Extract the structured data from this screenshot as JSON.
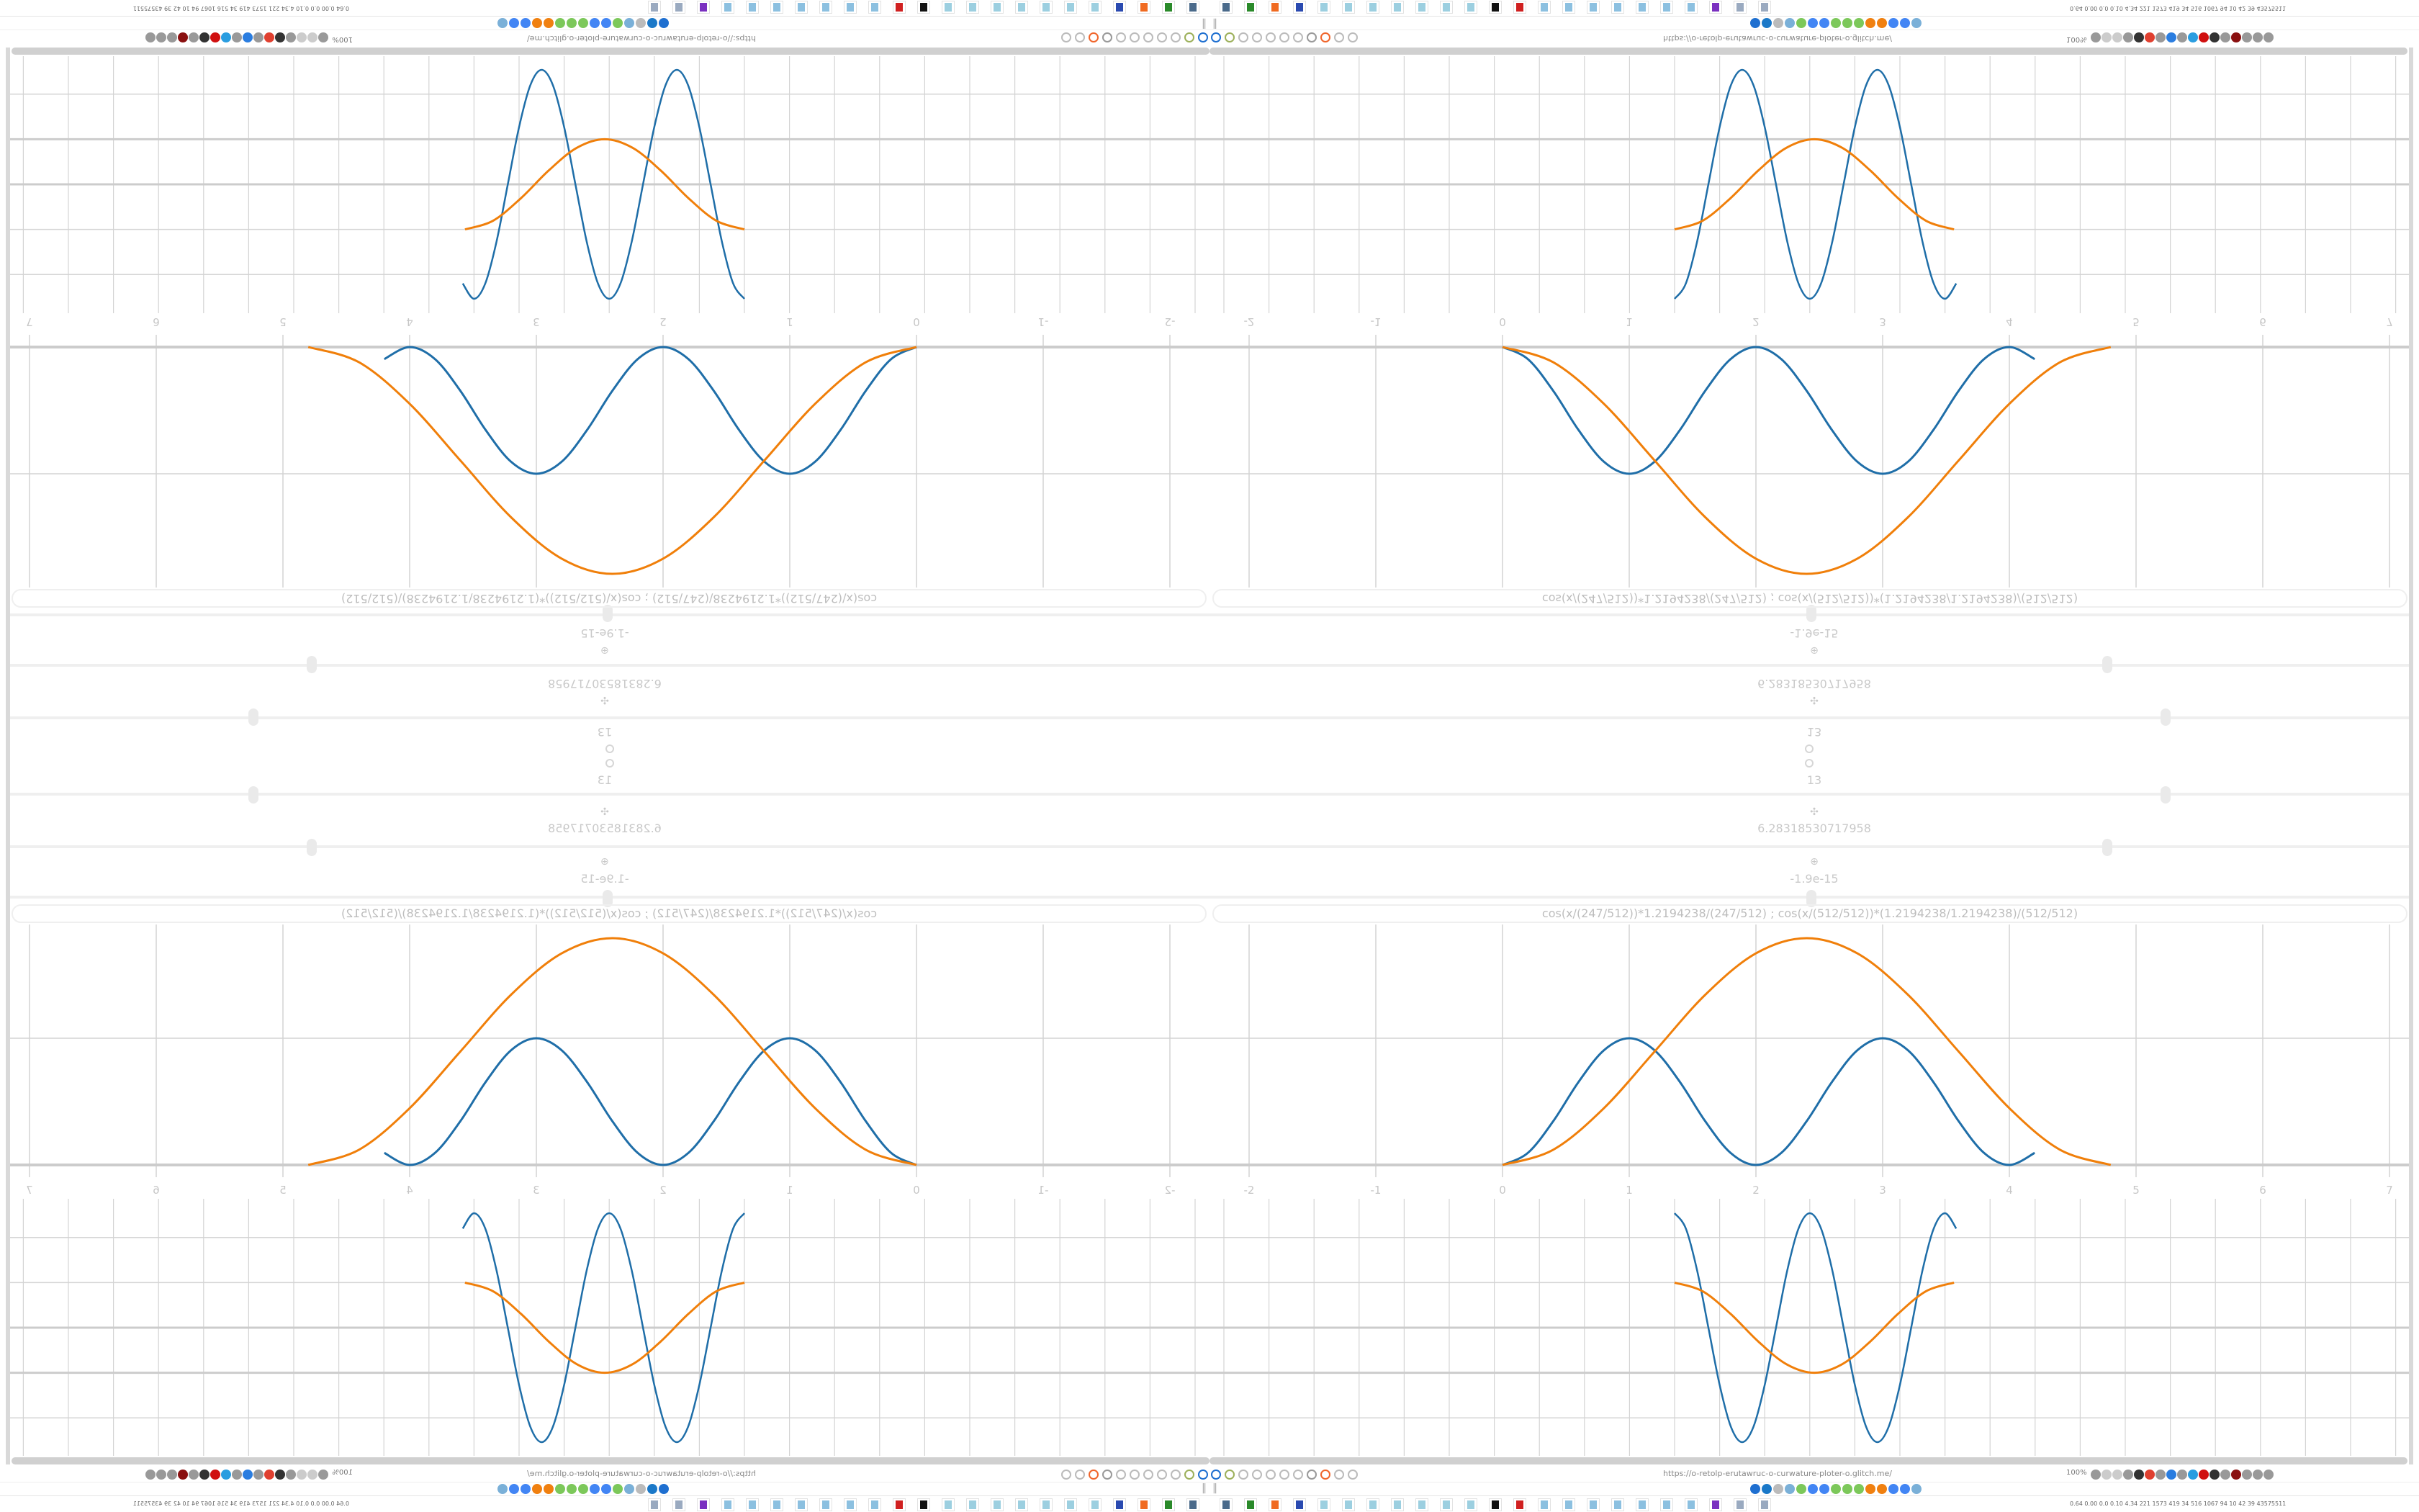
{
  "controls": {
    "segments_top": "13",
    "segments_bottom": "13",
    "range_end": "6.28318530717958",
    "range_start": "-1.9e-15",
    "formula": "cos(x/(247/512))*1.2194238/(247/512)   ;   cos(x/(512/512))*(1.2194238/1.2194238)/(512/512)"
  },
  "colors": {
    "series_blue": "#1f6ea8",
    "series_orange": "#f07f0a",
    "grid": "#d4d4d4",
    "axis": "#cccccc"
  },
  "chart_data": [
    {
      "type": "line",
      "x_ticks": [
        "-2",
        "-1",
        "0",
        "1",
        "2",
        "3",
        "4",
        "5",
        "6",
        "7"
      ],
      "xlim": [
        -2.3,
        7.1
      ],
      "ylim": [
        0,
        1.9
      ],
      "grid": true,
      "series": [
        {
          "color": "#1f6ea8",
          "x": [
            0,
            0.2,
            0.4,
            0.6,
            0.8,
            1,
            1.2,
            1.4,
            1.6,
            1.8,
            2,
            2.2,
            2.4,
            2.6,
            2.8,
            3,
            3.2,
            3.4,
            3.6,
            3.8,
            4,
            4.2
          ],
          "y": [
            0,
            0.095,
            0.345,
            0.655,
            0.905,
            1,
            0.905,
            0.655,
            0.345,
            0.095,
            0,
            0.095,
            0.345,
            0.655,
            0.905,
            1,
            0.905,
            0.655,
            0.345,
            0.095,
            0,
            0.095
          ]
        },
        {
          "color": "#f07f0a",
          "x": [
            0,
            0.4,
            0.8,
            1.2,
            1.6,
            2.0,
            2.4,
            2.8,
            3.2,
            3.6,
            4.0,
            4.4,
            4.8
          ],
          "y": [
            0,
            0.12,
            0.448,
            0.895,
            1.343,
            1.67,
            1.79,
            1.67,
            1.343,
            0.895,
            0.448,
            0.12,
            0
          ]
        }
      ]
    },
    {
      "type": "line",
      "grid": true,
      "series": [
        {
          "color": "#1f6ea8",
          "x": [
            0,
            0.25,
            0.5,
            0.75,
            1,
            1.25,
            1.5,
            1.75,
            2,
            2.25,
            2.5,
            2.75,
            3,
            3.25,
            3.5,
            3.75,
            4,
            4.25,
            4.5,
            4.75,
            5,
            5.25,
            5.5,
            5.75,
            6,
            6.25
          ],
          "y": [
            2.54,
            2.2,
            1.27,
            0,
            -1.27,
            -2.2,
            -2.54,
            -2.2,
            -1.27,
            0,
            1.27,
            2.2,
            2.54,
            2.2,
            1.27,
            0,
            -1.27,
            -2.2,
            -2.54,
            -2.2,
            -1.27,
            0,
            1.27,
            2.2,
            2.54,
            2.2
          ]
        },
        {
          "color": "#f07f0a",
          "x": [
            0,
            0.62,
            1.24,
            1.86,
            2.48,
            3.1,
            3.72,
            4.34,
            4.96,
            5.58,
            6.2
          ],
          "y": [
            1,
            0.809,
            0.309,
            -0.309,
            -0.809,
            -1,
            -0.809,
            -0.309,
            0.309,
            0.809,
            1
          ]
        }
      ]
    }
  ],
  "browser": {
    "url": "https://o-retolp-erutawruc-o-curwature-ploter-o.glitch.me/",
    "zoom": "100%",
    "toolbar_left_icons": [
      "#1e6fd0",
      "#9cb05a",
      "#bbb",
      "#bbb",
      "#bbb",
      "#bbb",
      "#bbb",
      "#999",
      "#f0642a",
      "#bbb",
      "#bbb"
    ],
    "toolbar_right_icons": [
      "#999",
      "#ccc",
      "#ccc",
      "#999",
      "#333",
      "#e04030",
      "#999",
      "#2a7de0",
      "#999",
      "#2a9de0",
      "#d01010",
      "#333",
      "#999",
      "#8a1010",
      "#999",
      "#999",
      "#999"
    ],
    "bookmarks": [
      "#1e6fd0",
      "#1a78c8",
      "#bbb",
      "#7ab0d8",
      "#7cc85a",
      "#4285f4",
      "#4285f4",
      "#7cc85a",
      "#7cc85a",
      "#7cc85a",
      "#f08010",
      "#f08010",
      "#4285f4",
      "#4285f4",
      "#7ab0d8"
    ]
  },
  "taskbar": {
    "items": [
      "#4a6a8a",
      "#2a8a2a",
      "#f06a20",
      "#2a4ab0",
      "#9ccfe0",
      "#9ccfe0",
      "#9ccfe0",
      "#9ccfe0",
      "#9ccfe0",
      "#9ccfe0",
      "#9ccfe0",
      "#111111",
      "#d02020",
      "#8cc0e0",
      "#8cc0e0",
      "#8cc0e0",
      "#8cc0e0",
      "#8cc0e0",
      "#8cc0e0",
      "#8cc0e0",
      "#7a30c0",
      "#9aaac0",
      "#9aaac0"
    ],
    "tray_text": "0.64 0.00 0.0 0.10 4.34 221 1573 419 34 516 1067 94 10 42 39 43575511"
  }
}
